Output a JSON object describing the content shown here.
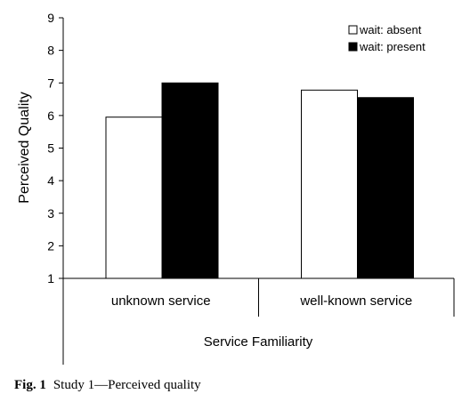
{
  "chart_data": {
    "type": "bar",
    "categories": [
      "unknown service",
      "well-known service"
    ],
    "series": [
      {
        "name": "wait: absent",
        "values": [
          5.95,
          6.78
        ],
        "color": "#ffffff"
      },
      {
        "name": "wait: present",
        "values": [
          7.0,
          6.55
        ],
        "color": "#000000"
      }
    ],
    "xlabel": "Service Familiarity",
    "ylabel": "Perceived Quality",
    "ylim": [
      1,
      9
    ],
    "yticks": [
      "1",
      "2",
      "3",
      "4",
      "5",
      "6",
      "7",
      "8",
      "9"
    ],
    "grid": false,
    "legend_position": "top-right"
  },
  "caption": {
    "label": "Fig. 1",
    "text": "Study 1—Perceived quality"
  }
}
